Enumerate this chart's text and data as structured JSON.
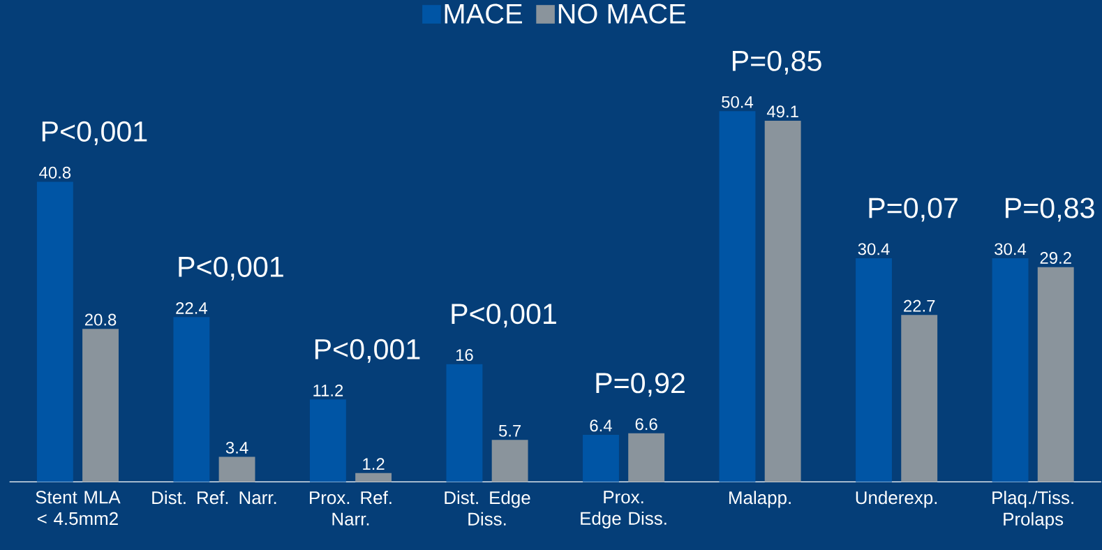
{
  "chart_data": {
    "type": "bar",
    "categories": [
      "Stent MLA < 4.5mm2",
      "Dist. Ref. Narr.",
      "Prox. Ref. Narr.",
      "Dist. Edge Diss.",
      "Prox. Edge Diss.",
      "Malapp.",
      "Underexp.",
      "Plaq./Tiss. Prolaps"
    ],
    "series": [
      {
        "name": "MACE",
        "color": "#0055a5",
        "values": [
          40.8,
          22.4,
          11.2,
          16,
          6.4,
          50.4,
          30.4,
          30.4
        ]
      },
      {
        "name": "NO MACE",
        "color": "#8a949c",
        "values": [
          20.8,
          3.4,
          1.2,
          5.7,
          6.6,
          49.1,
          22.7,
          29.2
        ]
      }
    ],
    "data_labels": true,
    "legend": "top",
    "annotations": [
      "P<0,001",
      "P<0,001",
      "P<0,001",
      "P<0,001",
      "P=0,92",
      "P=0,85",
      "P=0,07",
      "P=0,83"
    ]
  }
}
